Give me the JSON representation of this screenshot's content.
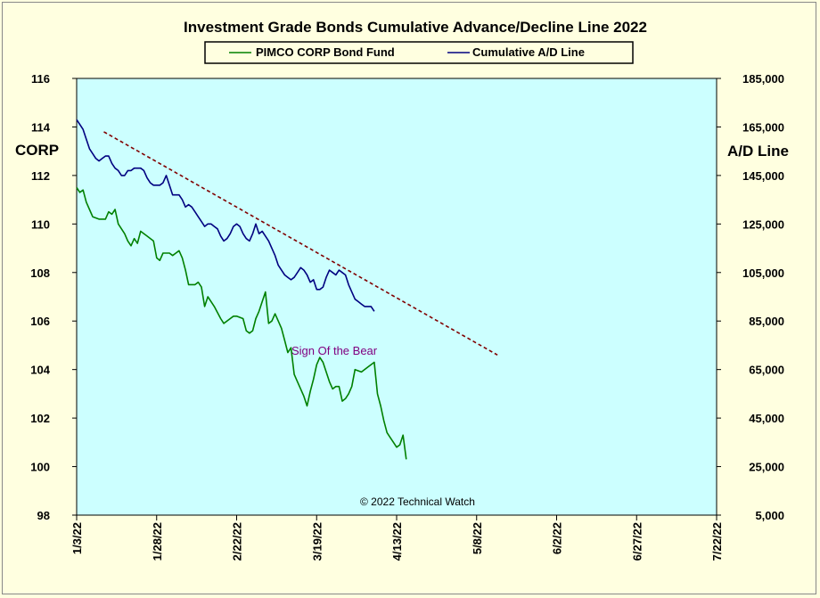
{
  "chart_data": {
    "type": "line",
    "title": "Investment Grade Bonds Cumulative Advance/Decline Line 2022",
    "ylabel_left": "CORP",
    "ylabel_right": "A/D Line",
    "annotation": "Sign Of the Bear",
    "copyright": "© 2022 Technical Watch",
    "legend": {
      "placement": "top-center"
    },
    "grid": false,
    "x_ticks": [
      "1/3/22",
      "1/28/22",
      "2/22/22",
      "3/19/22",
      "4/13/22",
      "5/8/22",
      "6/2/22",
      "6/27/22",
      "7/22/22"
    ],
    "xlim": [
      0,
      200
    ],
    "y_left": {
      "min": 98,
      "max": 116,
      "ticks": [
        "98",
        "100",
        "102",
        "104",
        "106",
        "108",
        "110",
        "112",
        "114",
        "116"
      ]
    },
    "y_right": {
      "min": 5000,
      "max": 185000,
      "ticks": [
        "5,000",
        "25,000",
        "45,000",
        "65,000",
        "85,000",
        "105,000",
        "125,000",
        "145,000",
        "165,000",
        "185,000"
      ]
    },
    "colors": {
      "plot_bg": "#ccffff",
      "page_bg": "#ffffe0",
      "pimco": "#008000",
      "ad": "#000080",
      "trend": "#800000",
      "annotation": "#800080"
    },
    "series": [
      {
        "name": "PIMCO CORP Bond Fund",
        "axis": "left",
        "color": "#008000",
        "points": [
          [
            0,
            111.5
          ],
          [
            1,
            111.3
          ],
          [
            2,
            111.4
          ],
          [
            3,
            110.9
          ],
          [
            4,
            110.6
          ],
          [
            5,
            110.3
          ],
          [
            7,
            110.2
          ],
          [
            9,
            110.2
          ],
          [
            10,
            110.5
          ],
          [
            11,
            110.4
          ],
          [
            12,
            110.6
          ],
          [
            13,
            110.0
          ],
          [
            14,
            109.8
          ],
          [
            15,
            109.6
          ],
          [
            16,
            109.3
          ],
          [
            17,
            109.1
          ],
          [
            18,
            109.4
          ],
          [
            19,
            109.2
          ],
          [
            20,
            109.7
          ],
          [
            22,
            109.5
          ],
          [
            24,
            109.3
          ],
          [
            25,
            108.6
          ],
          [
            26,
            108.5
          ],
          [
            27,
            108.8
          ],
          [
            29,
            108.8
          ],
          [
            30,
            108.7
          ],
          [
            31,
            108.8
          ],
          [
            32,
            108.9
          ],
          [
            33,
            108.6
          ],
          [
            34,
            108.1
          ],
          [
            35,
            107.5
          ],
          [
            37,
            107.5
          ],
          [
            38,
            107.6
          ],
          [
            39,
            107.4
          ],
          [
            40,
            106.6
          ],
          [
            41,
            107.0
          ],
          [
            42,
            106.8
          ],
          [
            43,
            106.6
          ],
          [
            45,
            106.1
          ],
          [
            46,
            105.9
          ],
          [
            48,
            106.1
          ],
          [
            49,
            106.2
          ],
          [
            50,
            106.2
          ],
          [
            52,
            106.1
          ],
          [
            53,
            105.6
          ],
          [
            54,
            105.5
          ],
          [
            55,
            105.6
          ],
          [
            56,
            106.1
          ],
          [
            57,
            106.4
          ],
          [
            58,
            106.8
          ],
          [
            59,
            107.2
          ],
          [
            60,
            105.9
          ],
          [
            61,
            106.0
          ],
          [
            62,
            106.3
          ],
          [
            63,
            106.0
          ],
          [
            64,
            105.7
          ],
          [
            65,
            105.2
          ],
          [
            66,
            104.7
          ],
          [
            67,
            104.9
          ],
          [
            68,
            103.8
          ],
          [
            69,
            103.5
          ],
          [
            70,
            103.2
          ],
          [
            71,
            102.9
          ],
          [
            72,
            102.5
          ],
          [
            73,
            103.1
          ],
          [
            74,
            103.6
          ],
          [
            75,
            104.2
          ],
          [
            76,
            104.5
          ],
          [
            77,
            104.3
          ],
          [
            78,
            103.9
          ],
          [
            79,
            103.5
          ],
          [
            80,
            103.2
          ],
          [
            81,
            103.3
          ],
          [
            82,
            103.3
          ],
          [
            83,
            102.7
          ],
          [
            84,
            102.8
          ],
          [
            85,
            103.0
          ],
          [
            86,
            103.3
          ],
          [
            87,
            104.0
          ],
          [
            89,
            103.9
          ],
          [
            91,
            104.1
          ],
          [
            93,
            104.3
          ],
          [
            94,
            103.0
          ],
          [
            95,
            102.5
          ],
          [
            96,
            101.9
          ],
          [
            97,
            101.4
          ],
          [
            98,
            101.2
          ],
          [
            99,
            101.0
          ],
          [
            100,
            100.8
          ],
          [
            101,
            100.9
          ],
          [
            102,
            101.3
          ],
          [
            103,
            100.3
          ]
        ]
      },
      {
        "name": "Cumulative A/D Line",
        "axis": "right",
        "color": "#000080",
        "points": [
          [
            0,
            168000
          ],
          [
            1,
            166000
          ],
          [
            2,
            164000
          ],
          [
            3,
            160000
          ],
          [
            4,
            156000
          ],
          [
            5,
            154000
          ],
          [
            6,
            152000
          ],
          [
            7,
            151000
          ],
          [
            8,
            152000
          ],
          [
            9,
            153000
          ],
          [
            10,
            153000
          ],
          [
            11,
            150000
          ],
          [
            12,
            148000
          ],
          [
            13,
            147000
          ],
          [
            14,
            145000
          ],
          [
            15,
            145000
          ],
          [
            16,
            147000
          ],
          [
            17,
            147000
          ],
          [
            18,
            148000
          ],
          [
            20,
            148000
          ],
          [
            21,
            147000
          ],
          [
            22,
            144000
          ],
          [
            23,
            142000
          ],
          [
            24,
            141000
          ],
          [
            26,
            141000
          ],
          [
            27,
            142000
          ],
          [
            28,
            145000
          ],
          [
            29,
            141000
          ],
          [
            30,
            137000
          ],
          [
            32,
            137000
          ],
          [
            33,
            135000
          ],
          [
            34,
            132000
          ],
          [
            35,
            133000
          ],
          [
            36,
            132000
          ],
          [
            37,
            130000
          ],
          [
            38,
            128000
          ],
          [
            39,
            126000
          ],
          [
            40,
            124000
          ],
          [
            41,
            125000
          ],
          [
            42,
            125000
          ],
          [
            43,
            124000
          ],
          [
            44,
            123000
          ],
          [
            45,
            120000
          ],
          [
            46,
            118000
          ],
          [
            47,
            119000
          ],
          [
            48,
            121000
          ],
          [
            49,
            124000
          ],
          [
            50,
            125000
          ],
          [
            51,
            124000
          ],
          [
            52,
            121000
          ],
          [
            53,
            119000
          ],
          [
            54,
            118000
          ],
          [
            55,
            121000
          ],
          [
            56,
            125000
          ],
          [
            57,
            121000
          ],
          [
            58,
            122000
          ],
          [
            59,
            120000
          ],
          [
            60,
            118000
          ],
          [
            61,
            115000
          ],
          [
            62,
            112000
          ],
          [
            63,
            108000
          ],
          [
            64,
            106000
          ],
          [
            65,
            104000
          ],
          [
            66,
            103000
          ],
          [
            67,
            102000
          ],
          [
            68,
            103000
          ],
          [
            69,
            105000
          ],
          [
            70,
            107000
          ],
          [
            71,
            106000
          ],
          [
            72,
            104000
          ],
          [
            73,
            101000
          ],
          [
            74,
            102000
          ],
          [
            75,
            98000
          ],
          [
            76,
            98000
          ],
          [
            77,
            99000
          ],
          [
            78,
            103000
          ],
          [
            79,
            106000
          ],
          [
            80,
            105000
          ],
          [
            81,
            104000
          ],
          [
            82,
            106000
          ],
          [
            83,
            105000
          ],
          [
            84,
            104000
          ],
          [
            85,
            100000
          ],
          [
            86,
            97000
          ],
          [
            87,
            94000
          ],
          [
            88,
            93000
          ],
          [
            89,
            92000
          ],
          [
            90,
            91000
          ],
          [
            91,
            91000
          ],
          [
            92,
            91000
          ],
          [
            93,
            89000
          ]
        ]
      },
      {
        "name": "trendline",
        "axis": "right",
        "color": "#800000",
        "dashed": true,
        "points": [
          [
            8.5,
            163000
          ],
          [
            131.5,
            71000
          ]
        ]
      }
    ]
  }
}
